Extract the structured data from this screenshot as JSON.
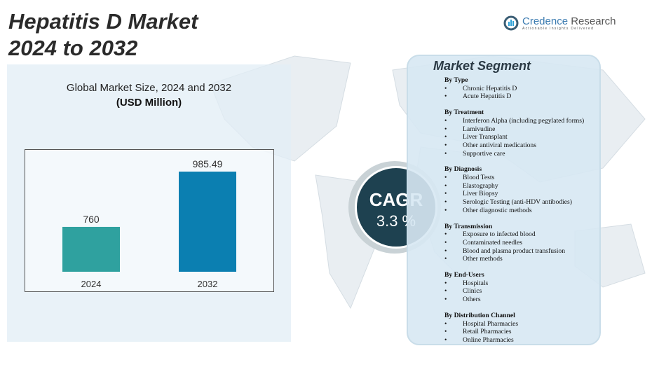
{
  "title_line1": "Hepatitis D Market",
  "title_line2": "2024 to 2032",
  "logo": {
    "name_a": "Credence",
    "name_b": " Research",
    "tagline": "Actionable Insights Delivered"
  },
  "chart_subtitle": "Global Market Size, 2024 and 2032",
  "chart_unit": "(USD Million)",
  "chart_data": {
    "type": "bar",
    "categories": [
      "2024",
      "2032"
    ],
    "values": [
      760,
      985.49
    ],
    "value_labels": [
      "760",
      "985.49"
    ],
    "colors": [
      "#2fa19f",
      "#0b7fb1"
    ],
    "grid": false
  },
  "cagr": {
    "label": "CAGR",
    "value": "3.3 %"
  },
  "segment": {
    "title": "Market Segment",
    "groups": [
      {
        "heading": "By Type",
        "items": [
          "Chronic Hepatitis D",
          "Acute Hepatitis D"
        ]
      },
      {
        "heading": "By Treatment",
        "items": [
          "Interferon Alpha (including pegylated forms)",
          "Lamivudine",
          "Liver Transplant",
          "Other antiviral medications",
          "Supportive care"
        ]
      },
      {
        "heading": "By Diagnosis",
        "items": [
          "Blood Tests",
          "Elastography",
          "Liver Biopsy",
          "Serologic Testing (anti-HDV  antibodies)",
          "Other diagnostic methods"
        ]
      },
      {
        "heading": "By Transmission",
        "items": [
          "Exposure  to infected blood",
          "Contaminated needles",
          "Blood and plasma  product transfusion",
          "Other methods"
        ]
      },
      {
        "heading": "By End-Users",
        "items": [
          "Hospitals",
          "Clinics",
          "Others"
        ]
      },
      {
        "heading": "By Distribution  Channel",
        "items": [
          "Hospital Pharmacies",
          "Retail Pharmacies",
          "Online Pharmacies"
        ]
      }
    ]
  }
}
